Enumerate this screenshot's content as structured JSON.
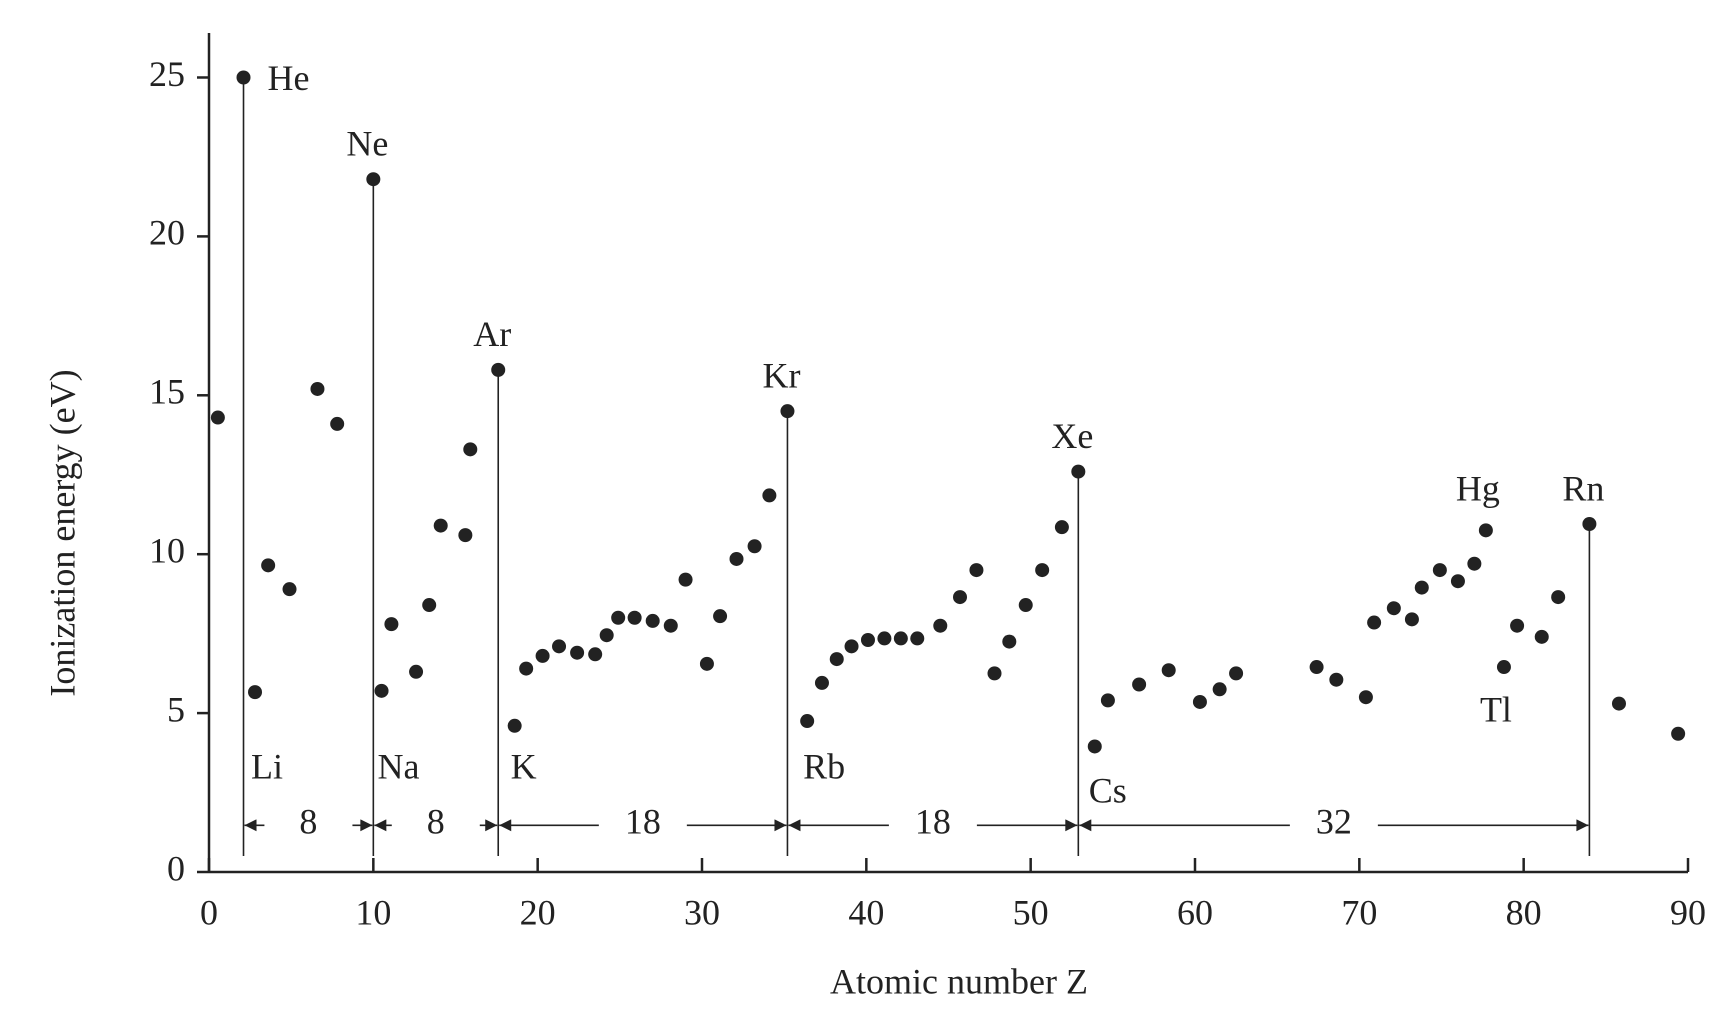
{
  "chart_data": {
    "type": "scatter",
    "xlabel": "Atomic number Z",
    "ylabel": "Ionization energy (eV)",
    "xlim": [
      0,
      90
    ],
    "ylim": [
      0,
      26.4
    ],
    "xticks": [
      0,
      10,
      20,
      30,
      40,
      50,
      60,
      70,
      80,
      90
    ],
    "yticks": [
      0,
      5,
      10,
      15,
      20,
      25
    ],
    "color": "#222222",
    "noble_gases": {
      "x": [
        2.1,
        10.0,
        17.6,
        35.2,
        52.9,
        84.0
      ],
      "values": [
        25.0,
        21.8,
        15.8,
        14.5,
        12.6,
        10.95
      ],
      "labels": [
        "He",
        "Ne",
        "Ar",
        "Kr",
        "Xe",
        "Rn"
      ]
    },
    "shell_sizes": [
      8,
      8,
      18,
      18,
      32
    ],
    "elements": {
      "x": [
        0.54,
        2.8,
        3.6,
        4.9,
        6.6,
        7.8,
        10.5,
        11.1,
        12.6,
        13.4,
        14.1,
        15.6,
        15.9,
        18.6,
        19.3,
        20.3,
        21.3,
        22.4,
        23.5,
        24.2,
        24.9,
        25.9,
        27.0,
        28.1,
        29.0,
        30.3,
        31.1,
        32.1,
        33.2,
        34.1,
        36.4,
        37.3,
        38.2,
        39.1,
        40.1,
        41.1,
        42.1,
        43.1,
        44.5,
        45.7,
        46.7,
        47.8,
        48.7,
        49.7,
        50.7,
        51.9,
        53.9,
        54.7,
        56.6,
        58.4,
        60.3,
        61.5,
        62.5,
        67.4,
        68.6,
        70.4,
        70.9,
        72.1,
        73.2,
        73.8,
        74.9,
        76.0,
        77.0,
        77.7,
        78.8,
        79.6,
        81.1,
        82.1,
        85.8,
        89.4
      ],
      "values": [
        14.3,
        5.66,
        9.65,
        8.9,
        15.2,
        14.1,
        5.7,
        7.8,
        6.3,
        8.4,
        10.9,
        10.6,
        13.3,
        4.6,
        6.4,
        6.8,
        7.1,
        6.9,
        6.85,
        7.45,
        8.0,
        8.0,
        7.9,
        7.75,
        9.2,
        6.55,
        8.05,
        9.85,
        10.25,
        11.85,
        4.75,
        5.95,
        6.7,
        7.1,
        7.3,
        7.35,
        7.35,
        7.35,
        7.75,
        8.65,
        9.5,
        6.25,
        7.25,
        8.4,
        9.5,
        10.85,
        3.95,
        5.4,
        5.9,
        6.35,
        5.35,
        5.75,
        6.25,
        6.45,
        6.05,
        5.5,
        7.85,
        8.3,
        7.95,
        8.95,
        9.5,
        9.15,
        9.7,
        10.75,
        6.45,
        7.75,
        7.4,
        8.65,
        5.3,
        4.35
      ],
      "labels": [
        null,
        "Li",
        null,
        null,
        null,
        null,
        "Na",
        null,
        null,
        null,
        null,
        null,
        null,
        "K",
        null,
        null,
        null,
        null,
        null,
        null,
        null,
        null,
        null,
        null,
        null,
        null,
        null,
        null,
        null,
        null,
        "Rb",
        null,
        null,
        null,
        null,
        null,
        null,
        null,
        null,
        null,
        null,
        null,
        null,
        null,
        null,
        null,
        "Cs",
        null,
        null,
        null,
        null,
        null,
        null,
        null,
        null,
        null,
        null,
        null,
        null,
        null,
        null,
        null,
        null,
        "Hg",
        "Tl",
        null,
        null,
        null,
        null,
        null
      ]
    }
  }
}
